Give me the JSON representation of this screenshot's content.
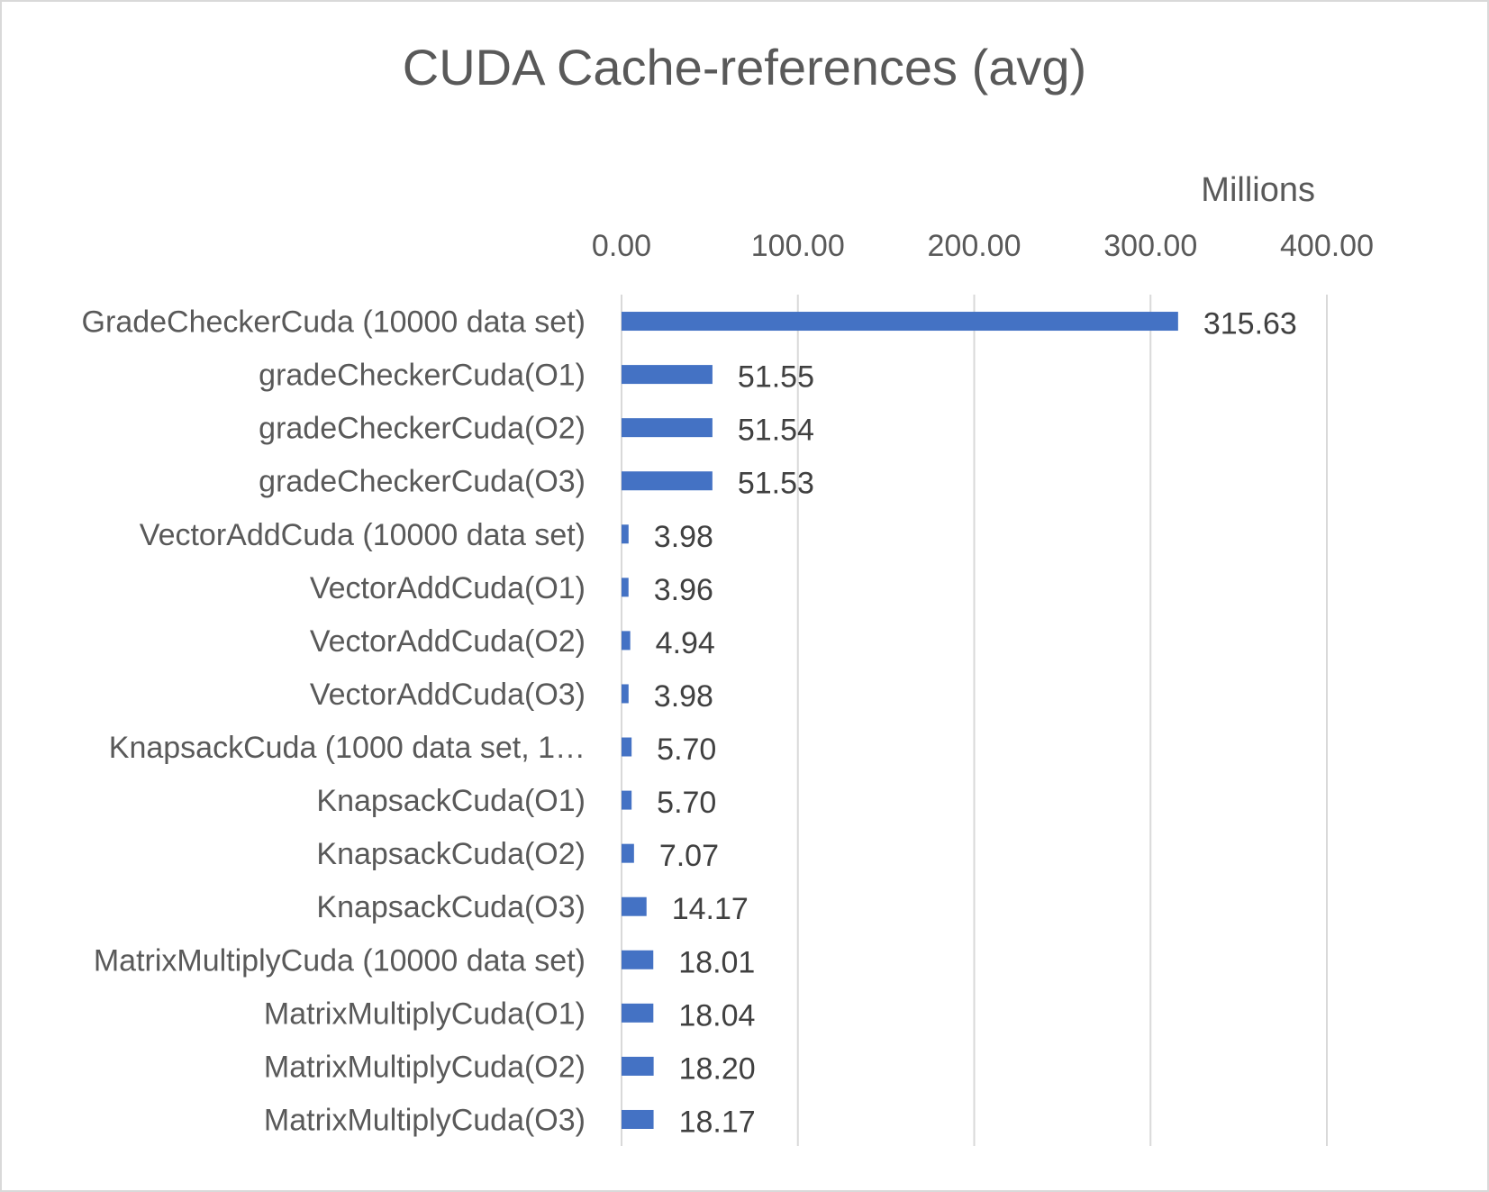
{
  "chart_data": {
    "type": "bar",
    "orientation": "horizontal",
    "title": "CUDA Cache-references (avg)",
    "units_label": "Millions",
    "xlim": [
      0,
      400
    ],
    "ticks": [
      0,
      100,
      200,
      300,
      400
    ],
    "tick_labels": [
      "0.00",
      "100.00",
      "200.00",
      "300.00",
      "400.00"
    ],
    "axis_position": "top",
    "grid": true,
    "bar_color": "#4472c4",
    "categories": [
      "GradeCheckerCuda (10000 data set)",
      "gradeCheckerCuda(O1)",
      "gradeCheckerCuda(O2)",
      "gradeCheckerCuda(O3)",
      "VectorAddCuda (10000 data set)",
      "VectorAddCuda(O1)",
      "VectorAddCuda(O2)",
      "VectorAddCuda(O3)",
      "KnapsackCuda (1000 data set, 1…",
      "KnapsackCuda(O1)",
      "KnapsackCuda(O2)",
      "KnapsackCuda(O3)",
      "MatrixMultiplyCuda (10000 data set)",
      "MatrixMultiplyCuda(O1)",
      "MatrixMultiplyCuda(O2)",
      "MatrixMultiplyCuda(O3)"
    ],
    "values": [
      315.63,
      51.55,
      51.54,
      51.53,
      3.98,
      3.96,
      4.94,
      3.98,
      5.7,
      5.7,
      7.07,
      14.17,
      18.01,
      18.04,
      18.2,
      18.17
    ],
    "data_labels": [
      "315.63",
      "51.55",
      "51.54",
      "51.53",
      "3.98",
      "3.96",
      "4.94",
      "3.98",
      "5.70",
      "5.70",
      "7.07",
      "14.17",
      "18.01",
      "18.04",
      "18.20",
      "18.17"
    ]
  }
}
